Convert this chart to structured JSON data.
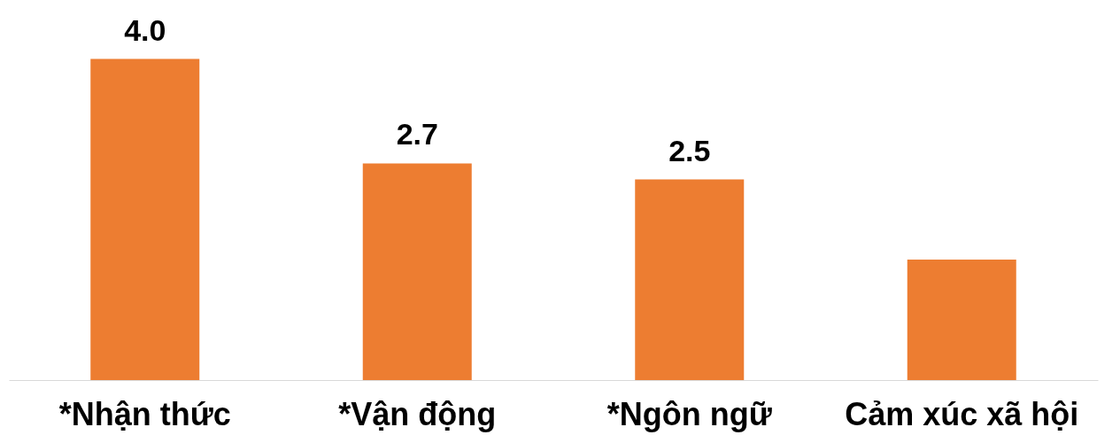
{
  "chart_data": {
    "type": "bar",
    "categories": [
      "*Nhận thức",
      "*Vận động",
      "*Ngôn ngữ",
      "Cảm xúc xã hội"
    ],
    "values": [
      4.0,
      2.7,
      2.5,
      1.5
    ],
    "value_labels": [
      "4.0",
      "2.7",
      "2.5",
      null
    ],
    "color": "#ed7d31",
    "grid": false,
    "tick_labels": "x"
  }
}
